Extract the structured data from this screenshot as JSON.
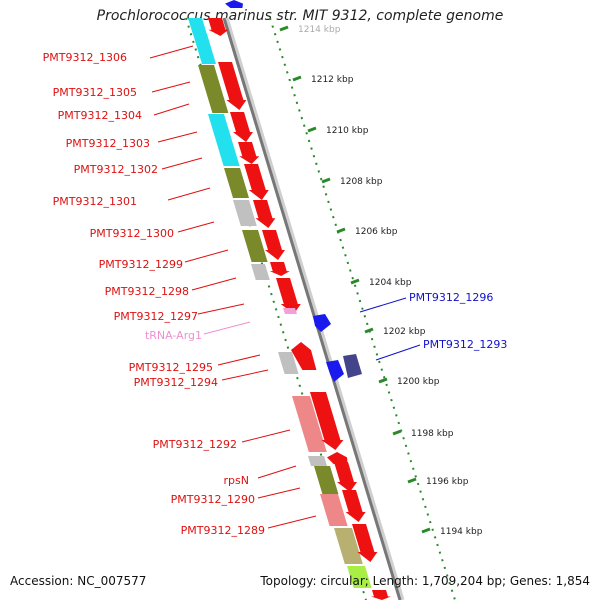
{
  "title": "Prochlorococcus marinus str. MIT 9312, complete genome",
  "footer": {
    "accession": "Accession: NC_007577",
    "summary": "Topology: circular; Length: 1,709,204 bp; Genes: 1,854"
  },
  "ruler": {
    "ticks": [
      "1214 kbp",
      "1212 kbp",
      "1210 kbp",
      "1208 kbp",
      "1206 kbp",
      "1204 kbp",
      "1202 kbp",
      "1200 kbp",
      "1198 kbp",
      "1196 kbp",
      "1194 kbp"
    ]
  },
  "colors": {
    "forward_gene": "#ee1111",
    "reverse_gene": "#1a1aee",
    "trna": "#f4a0d8",
    "cog_olive": "#7a8a2a",
    "cog_cyan": "#22e0ee",
    "cog_grey": "#c0c0c0",
    "cog_salmon": "#ee8888",
    "cog_khaki": "#b8b070",
    "cog_navy": "#44448a",
    "cog_lime": "#a8ee44"
  },
  "labels_left": [
    {
      "text": "PMT9312_1306",
      "color": "#dd1111"
    },
    {
      "text": "PMT9312_1305",
      "color": "#dd1111"
    },
    {
      "text": "PMT9312_1304",
      "color": "#dd1111"
    },
    {
      "text": "PMT9312_1303",
      "color": "#dd1111"
    },
    {
      "text": "PMT9312_1302",
      "color": "#dd1111"
    },
    {
      "text": "PMT9312_1301",
      "color": "#dd1111"
    },
    {
      "text": "PMT9312_1300",
      "color": "#dd1111"
    },
    {
      "text": "PMT9312_1299",
      "color": "#dd1111"
    },
    {
      "text": "PMT9312_1298",
      "color": "#dd1111"
    },
    {
      "text": "PMT9312_1297",
      "color": "#dd1111"
    },
    {
      "text": "tRNA-Arg1",
      "color": "#f090d0"
    },
    {
      "text": "PMT9312_1295",
      "color": "#dd1111"
    },
    {
      "text": "PMT9312_1294",
      "color": "#dd1111"
    },
    {
      "text": "PMT9312_1292",
      "color": "#dd1111"
    },
    {
      "text": "rpsN",
      "color": "#dd1111"
    },
    {
      "text": "PMT9312_1290",
      "color": "#dd1111"
    },
    {
      "text": "PMT9312_1289",
      "color": "#dd1111"
    }
  ],
  "labels_right": [
    {
      "text": "PMT9312_1296",
      "color": "#1111cc"
    },
    {
      "text": "PMT9312_1293",
      "color": "#1111cc"
    }
  ]
}
